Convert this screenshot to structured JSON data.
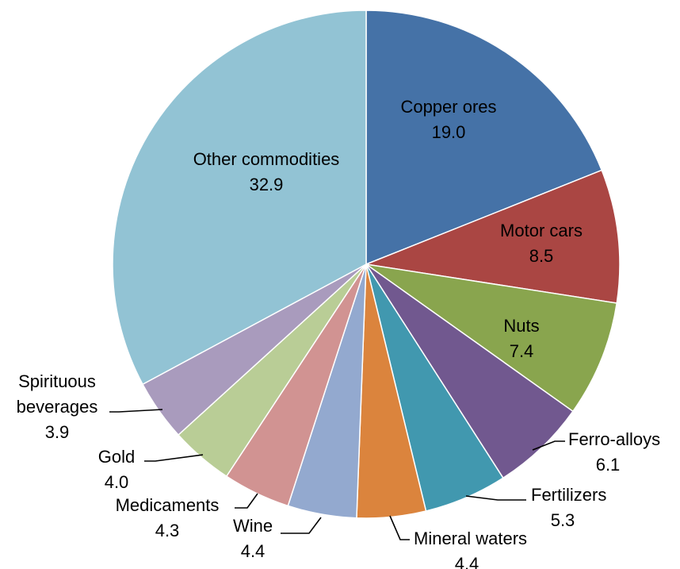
{
  "chart_data": {
    "type": "pie",
    "start_angle": "12 o'clock",
    "direction": "clockwise",
    "slices": [
      {
        "label": "Copper ores",
        "value": 19.0,
        "value_text": "19.0",
        "color": "#4572A7"
      },
      {
        "label": "Motor cars",
        "value": 8.5,
        "value_text": "8.5",
        "color": "#AA4643"
      },
      {
        "label": "Nuts",
        "value": 7.4,
        "value_text": "7.4",
        "color": "#89A54E"
      },
      {
        "label": "Ferro-alloys",
        "value": 6.1,
        "value_text": "6.1",
        "color": "#71588F"
      },
      {
        "label": "Fertilizers",
        "value": 5.3,
        "value_text": "5.3",
        "color": "#4198AF"
      },
      {
        "label": "Mineral waters",
        "value": 4.4,
        "value_text": "4.4",
        "color": "#DB843D"
      },
      {
        "label": "Wine",
        "value": 4.4,
        "value_text": "4.4",
        "color": "#93A9CF"
      },
      {
        "label": "Medicaments",
        "value": 4.3,
        "value_text": "4.3",
        "color": "#D19392"
      },
      {
        "label": "Gold",
        "value": 4.0,
        "value_text": "4.0",
        "color": "#B9CD96"
      },
      {
        "label": "Spirituous beverages",
        "value": 3.9,
        "value_text": "3.9",
        "color": "#A99BBD"
      },
      {
        "label": "Other commodities",
        "value": 32.9,
        "value_text": "32.9",
        "color": "#92C3D4"
      }
    ]
  }
}
